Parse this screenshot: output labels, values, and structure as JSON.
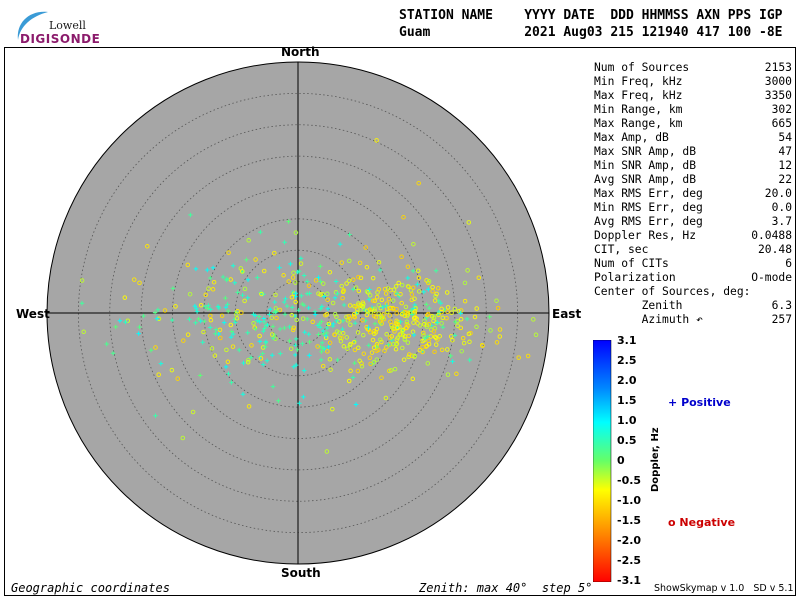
{
  "header": {
    "labels": "STATION NAME    YYYY DATE  DDD HHMMSS AXN PPS IGP",
    "values": "Guam            2021 Aug03 215 121940 417 100 -8E"
  },
  "logo": {
    "top": "Lowell",
    "main": "DIGISONDE"
  },
  "stats": [
    {
      "label": "Num of Sources",
      "value": "2153"
    },
    {
      "label": "Min Freq, kHz",
      "value": "3000"
    },
    {
      "label": "Max Freq, kHz",
      "value": "3350"
    },
    {
      "label": "Min Range, km",
      "value": "302"
    },
    {
      "label": "Max Range, km",
      "value": "665"
    },
    {
      "label": "Max Amp, dB",
      "value": "54"
    },
    {
      "label": "Max SNR Amp, dB",
      "value": "47"
    },
    {
      "label": "Min SNR Amp, dB",
      "value": "12"
    },
    {
      "label": "Avg SNR Amp, dB",
      "value": "22"
    },
    {
      "label": "Max RMS Err, deg",
      "value": "20.0"
    },
    {
      "label": "Min RMS Err, deg",
      "value": "0.0"
    },
    {
      "label": "Avg RMS Err, deg",
      "value": "3.7"
    },
    {
      "label": "Doppler Res, Hz",
      "value": "0.0488"
    },
    {
      "label": "CIT, sec",
      "value": "20.48"
    },
    {
      "label": "Num of CITs",
      "value": "6"
    },
    {
      "label": "Polarization",
      "value": "O-mode"
    },
    {
      "label": "Center of Sources, deg:",
      "value": ""
    },
    {
      "label": "       Zenith",
      "value": "6.3"
    },
    {
      "label": "       Azimuth ↶",
      "value": "257"
    }
  ],
  "chart_data": {
    "type": "scatter",
    "projection": "polar-skymap",
    "directions": {
      "north": "North",
      "south": "South",
      "east": "East",
      "west": "West"
    },
    "zenith_max_deg": 40,
    "zenith_step_deg": 5,
    "grid": true,
    "source_count": 2153,
    "center": {
      "zenith_deg": 6.3,
      "azimuth_deg": 257
    },
    "series": [
      {
        "name": "Positive",
        "marker": "+",
        "color": "#0000cc"
      },
      {
        "name": "Negative",
        "marker": "o",
        "color": "#cc0000"
      }
    ],
    "colorbar": {
      "title": "Doppler, Hz",
      "range": [
        -3.1,
        3.1
      ],
      "ticks": [
        "3.1",
        "2.5",
        "2.0",
        "1.5",
        "1.0",
        "0.5",
        "0",
        "-0.5",
        "-1.0",
        "-1.5",
        "-2.0",
        "-2.5",
        "-3.1"
      ]
    }
  },
  "footer": {
    "left": "Geographic coordinates",
    "center": "Zenith: max 40°  step 5°",
    "right": "ShowSkymap v 1.0   SD v 5.1"
  }
}
